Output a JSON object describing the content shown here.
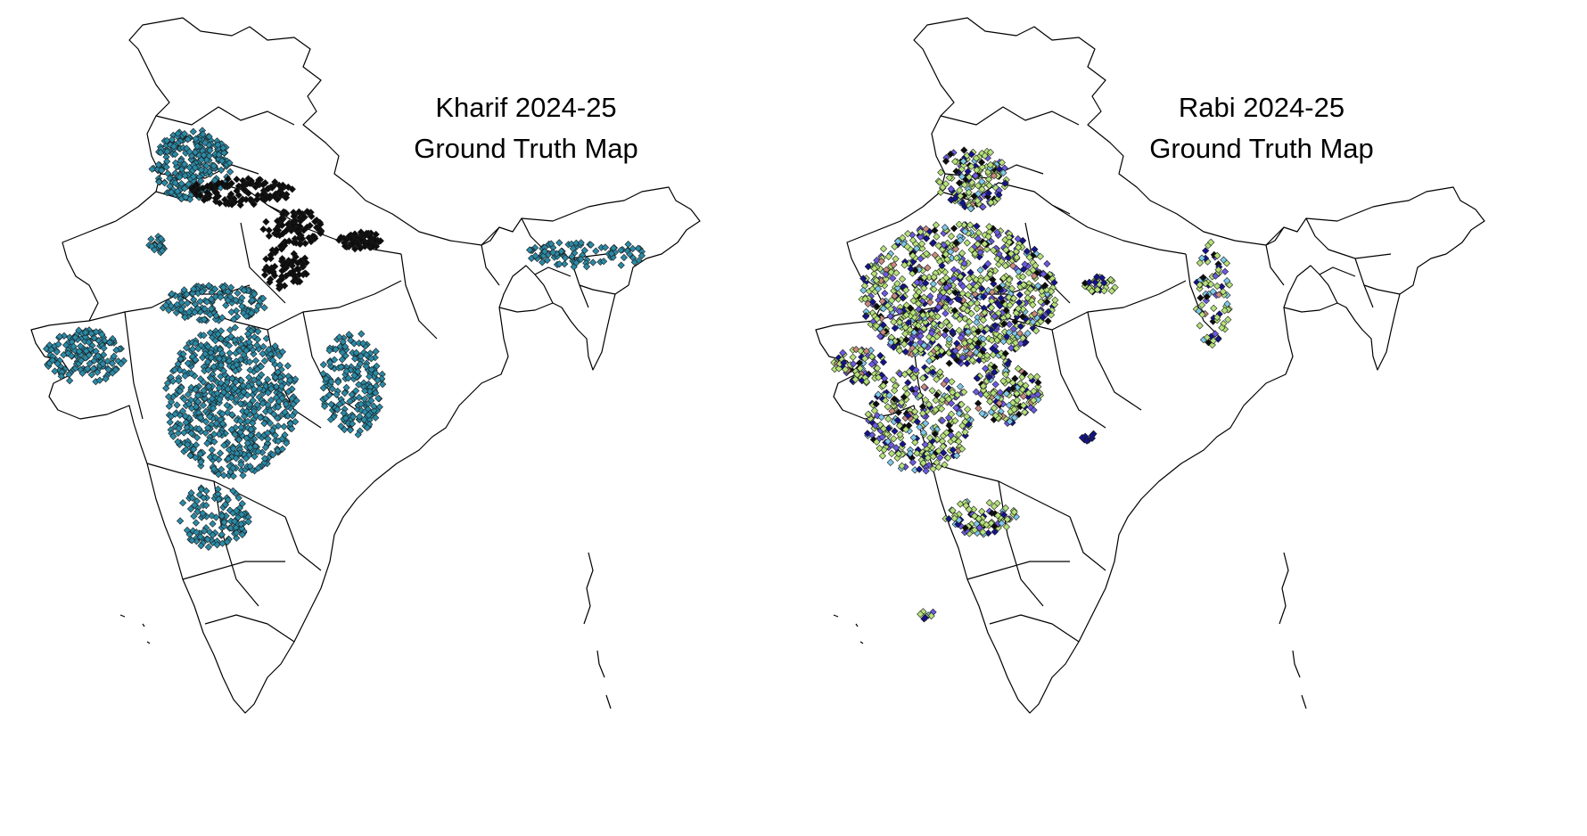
{
  "maps": [
    {
      "title_line1": "Kharif 2024-25",
      "title_line2": "Ground Truth Map",
      "point_colors": [
        "#2a8aa6",
        "#0d0d0d"
      ]
    },
    {
      "title_line1": "Rabi 2024-25",
      "title_line2": "Ground Truth Map",
      "point_colors": [
        "#b5e27a",
        "#14148a",
        "#6a5ae0",
        "#7ec8e8",
        "#c98a80",
        "#0d0d0d"
      ]
    }
  ],
  "colors": {
    "background": "#ffffff",
    "boundary": "#000000"
  }
}
